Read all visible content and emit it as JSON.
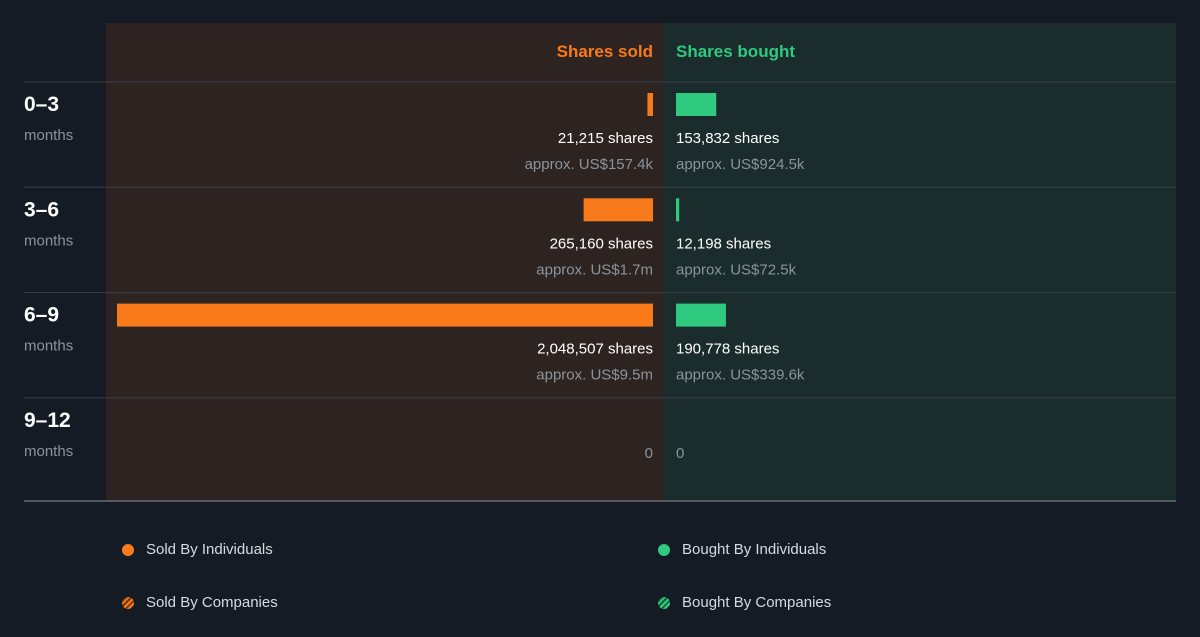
{
  "colors": {
    "background": "#151b24",
    "sold_panel": "#2d2422",
    "bought_panel": "#1a2c2c",
    "sold": "#f97a1a",
    "bought": "#2fc97f",
    "text_primary": "#ffffff",
    "text_muted": "#8b939b",
    "divider": "#3a4049"
  },
  "chart_data": {
    "type": "bar",
    "layout": "diverging-horizontal",
    "headers": {
      "sold": "Shares sold",
      "bought": "Shares bought"
    },
    "unit_word": "months",
    "rows": [
      {
        "period": "0–3",
        "sold_shares": 21215,
        "sold_shares_label": "21,215 shares",
        "sold_value_label": "approx. US$157.4k",
        "bought_shares": 153832,
        "bought_shares_label": "153,832 shares",
        "bought_value_label": "approx. US$924.5k"
      },
      {
        "period": "3–6",
        "sold_shares": 265160,
        "sold_shares_label": "265,160 shares",
        "sold_value_label": "approx. US$1.7m",
        "bought_shares": 12198,
        "bought_shares_label": "12,198 shares",
        "bought_value_label": "approx. US$72.5k"
      },
      {
        "period": "6–9",
        "sold_shares": 2048507,
        "sold_shares_label": "2,048,507 shares",
        "sold_value_label": "approx. US$9.5m",
        "bought_shares": 190778,
        "bought_shares_label": "190,778 shares",
        "bought_value_label": "approx. US$339.6k"
      },
      {
        "period": "9–12",
        "sold_shares": 0,
        "sold_shares_label": "0",
        "sold_value_label": "",
        "bought_shares": 0,
        "bought_shares_label": "0",
        "bought_value_label": ""
      }
    ],
    "legend": [
      {
        "label": "Sold By Individuals",
        "style": "solid",
        "side": "sold"
      },
      {
        "label": "Bought By Individuals",
        "style": "solid",
        "side": "bought"
      },
      {
        "label": "Sold By Companies",
        "style": "hatched",
        "side": "sold"
      },
      {
        "label": "Bought By Companies",
        "style": "hatched",
        "side": "bought"
      }
    ]
  }
}
